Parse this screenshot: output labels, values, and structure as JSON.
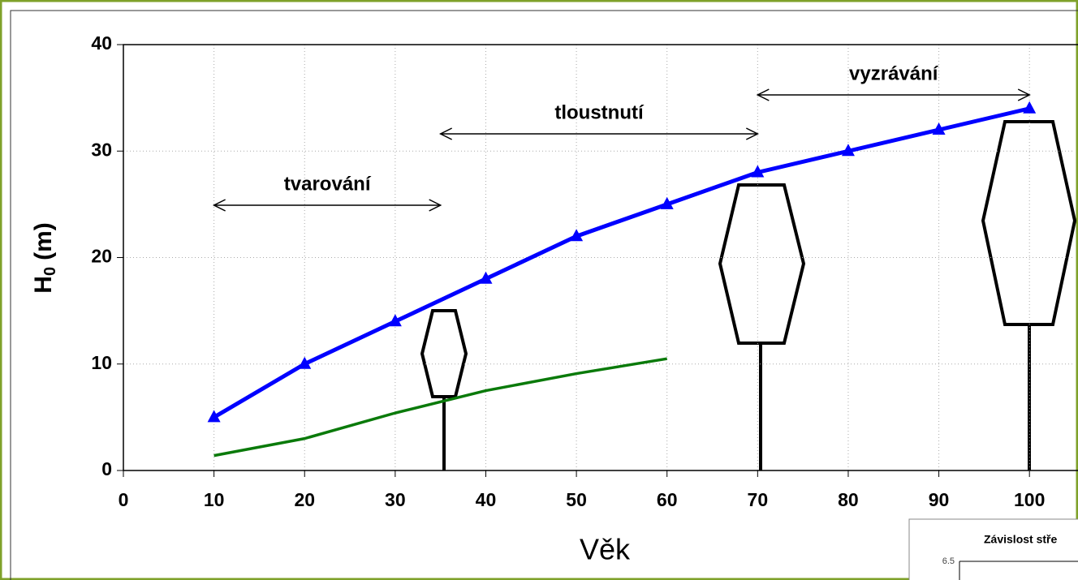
{
  "chart_data": {
    "type": "line",
    "xlabel": "Věk",
    "ylabel": "H",
    "ylabel_sub": "0",
    "ylabel_unit": "(m)",
    "xlim": [
      0,
      105
    ],
    "xticks": [
      0,
      10,
      20,
      30,
      40,
      50,
      60,
      70,
      80,
      90,
      100
    ],
    "ylim": [
      0,
      40
    ],
    "yticks": [
      0,
      10,
      20,
      30,
      40
    ],
    "grid": true,
    "series": [
      {
        "x": [
          10,
          20,
          30,
          40,
          50,
          60,
          70,
          80,
          90,
          100
        ],
        "values": [
          5,
          10,
          14,
          18,
          22,
          25,
          28,
          30,
          32,
          34
        ],
        "color": "#0000ff",
        "marker": "triangle"
      },
      {
        "x": [
          10,
          20,
          30,
          40,
          50,
          60
        ],
        "values": [
          1.4,
          3.0,
          5.4,
          7.5,
          9.1,
          10.5
        ],
        "color": "#0a7a0a"
      }
    ],
    "annotations": [
      {
        "text": "tvarování",
        "range": [
          10,
          35
        ]
      },
      {
        "text": "tloustnutí",
        "range": [
          35,
          70
        ]
      },
      {
        "text": "vyzrávání",
        "range": [
          70,
          100
        ]
      }
    ]
  },
  "inset": {
    "title": "Závislost stře",
    "ytick": "6.5"
  }
}
